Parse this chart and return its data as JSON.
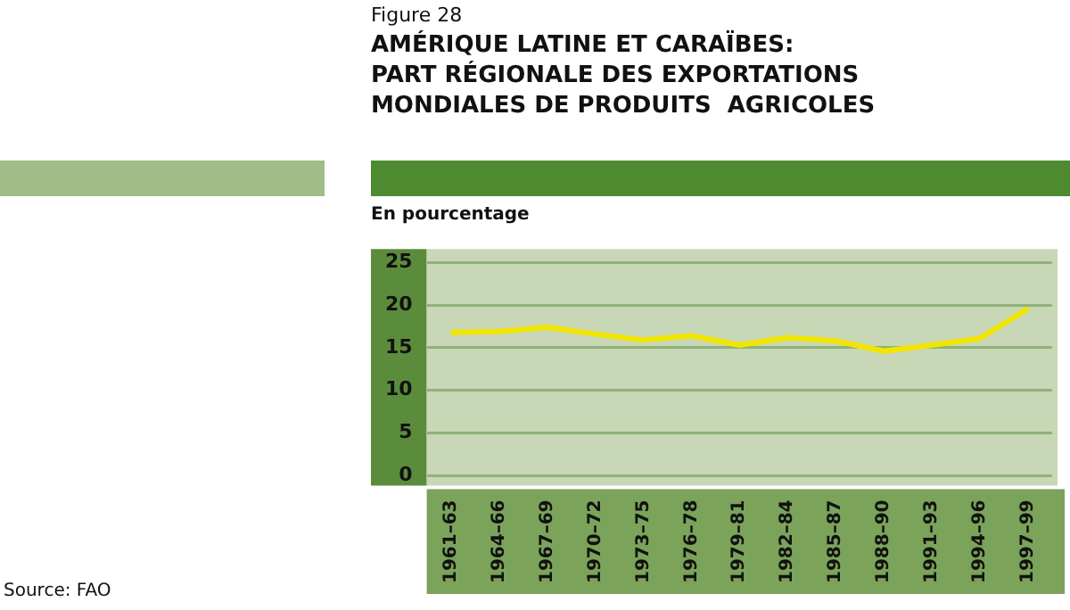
{
  "chart_data": {
    "type": "line",
    "title": "AMÉRIQUE LATINE ET CARAÏBES:\nPART RÉGIONALE DES EXPORTATIONS\nMONDIALES DE PRODUITS  AGRICOLES",
    "subtitle": "Figure 28",
    "ylabel": "En pourcentage",
    "annotations": [
      "Source: FAO"
    ],
    "categories": [
      "1961–63",
      "1964–66",
      "1967–69",
      "1970–72",
      "1973–75",
      "1976–78",
      "1979–81",
      "1982–84",
      "1985–87",
      "1988–90",
      "1991–93",
      "1994–96",
      "1997–99"
    ],
    "series": [
      {
        "color": "#f2e600",
        "values": [
          16.8,
          16.9,
          17.4,
          16.6,
          15.9,
          16.4,
          15.3,
          16.2,
          15.8,
          14.6,
          15.3,
          16.1,
          19.6
        ]
      }
    ],
    "ylim": [
      -1.2,
      26.6
    ],
    "yticks": [
      0,
      5,
      10,
      15,
      20,
      25
    ],
    "grid": "y",
    "legend": false,
    "marker": "none",
    "line_style": "solid"
  }
}
